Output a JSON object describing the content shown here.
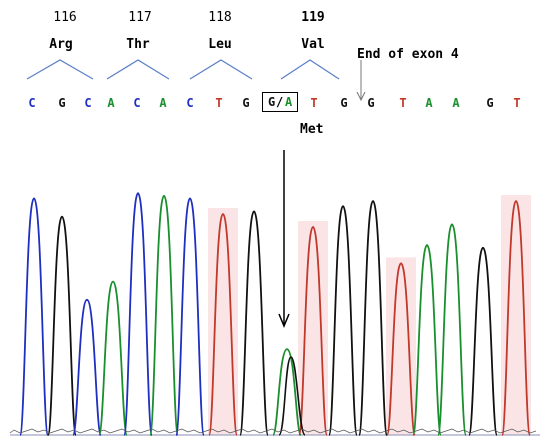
{
  "colors": {
    "A": "#1a8f2e",
    "C": "#1f2fbf",
    "G": "#111111",
    "T": "#c0392b",
    "chevron": "#5b7fc7"
  },
  "codons": [
    {
      "number": "116",
      "aa": "Arg"
    },
    {
      "number": "117",
      "aa": "Thr"
    },
    {
      "number": "118",
      "aa": "Leu"
    },
    {
      "number": "119",
      "aa": "Val"
    }
  ],
  "sequence": [
    "C",
    "G",
    "C",
    "A",
    "C",
    "A",
    "C",
    "T",
    "G",
    "G/A",
    "T",
    "G",
    "G",
    "T",
    "A",
    "A",
    "G",
    "T"
  ],
  "mutation": {
    "label": "G/A",
    "g": "G",
    "slash": "/",
    "a": "A",
    "result": "Met"
  },
  "annotation": {
    "exon_end": "End of exon 4"
  },
  "chromatogram_peaks": [
    {
      "base": "C",
      "height": 0.91
    },
    {
      "base": "G",
      "height": 0.84
    },
    {
      "base": "C",
      "height": 0.52
    },
    {
      "base": "A",
      "height": 0.59
    },
    {
      "base": "C",
      "height": 0.93
    },
    {
      "base": "A",
      "height": 0.92
    },
    {
      "base": "C",
      "height": 0.91
    },
    {
      "base": "T",
      "height": 0.85
    },
    {
      "base": "G",
      "height": 0.86
    },
    {
      "base": "A",
      "height": 0.33
    },
    {
      "base": "T",
      "height": 0.8
    },
    {
      "base": "G",
      "height": 0.88
    },
    {
      "base": "G",
      "height": 0.9
    },
    {
      "base": "T",
      "height": 0.66
    },
    {
      "base": "A",
      "height": 0.73
    },
    {
      "base": "A",
      "height": 0.81
    },
    {
      "base": "G",
      "height": 0.72
    },
    {
      "base": "T",
      "height": 0.9
    }
  ]
}
